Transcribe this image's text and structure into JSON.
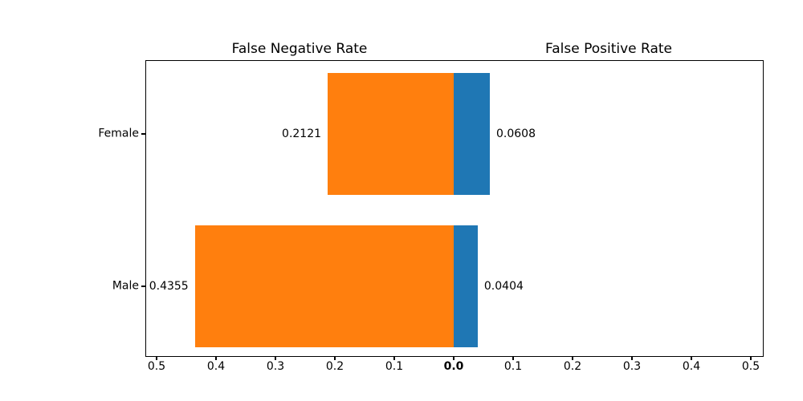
{
  "figure": {
    "background": "#ffffff",
    "text_color": "#000000"
  },
  "chart_data": {
    "type": "bar",
    "variant": "diverging-horizontal",
    "left_title": "False Negative Rate",
    "right_title": "False Positive Rate",
    "categories": [
      "Female",
      "Male"
    ],
    "series": [
      {
        "name": "False Negative Rate",
        "slug": "fnr",
        "side": "left",
        "color": "#ff7f0e",
        "values": [
          0.2121,
          0.4355
        ],
        "labels": [
          "0.2121",
          "0.4355"
        ]
      },
      {
        "name": "False Positive Rate",
        "slug": "fpr",
        "side": "right",
        "color": "#1f77b4",
        "values": [
          0.0608,
          0.0404
        ],
        "labels": [
          "0.0608",
          "0.0404"
        ]
      }
    ],
    "axis": {
      "tick_values": [
        0.5,
        0.4,
        0.3,
        0.2,
        0.1
      ],
      "left_tick_labels": [
        "0.5",
        "0.4",
        "0.3",
        "0.2",
        "0.1"
      ],
      "center_tick_label": "0.0",
      "right_tick_labels": [
        "0.1",
        "0.2",
        "0.3",
        "0.4",
        "0.5"
      ],
      "xlim_each_side": [
        0,
        0.52
      ],
      "grid": false,
      "legend": false
    }
  }
}
